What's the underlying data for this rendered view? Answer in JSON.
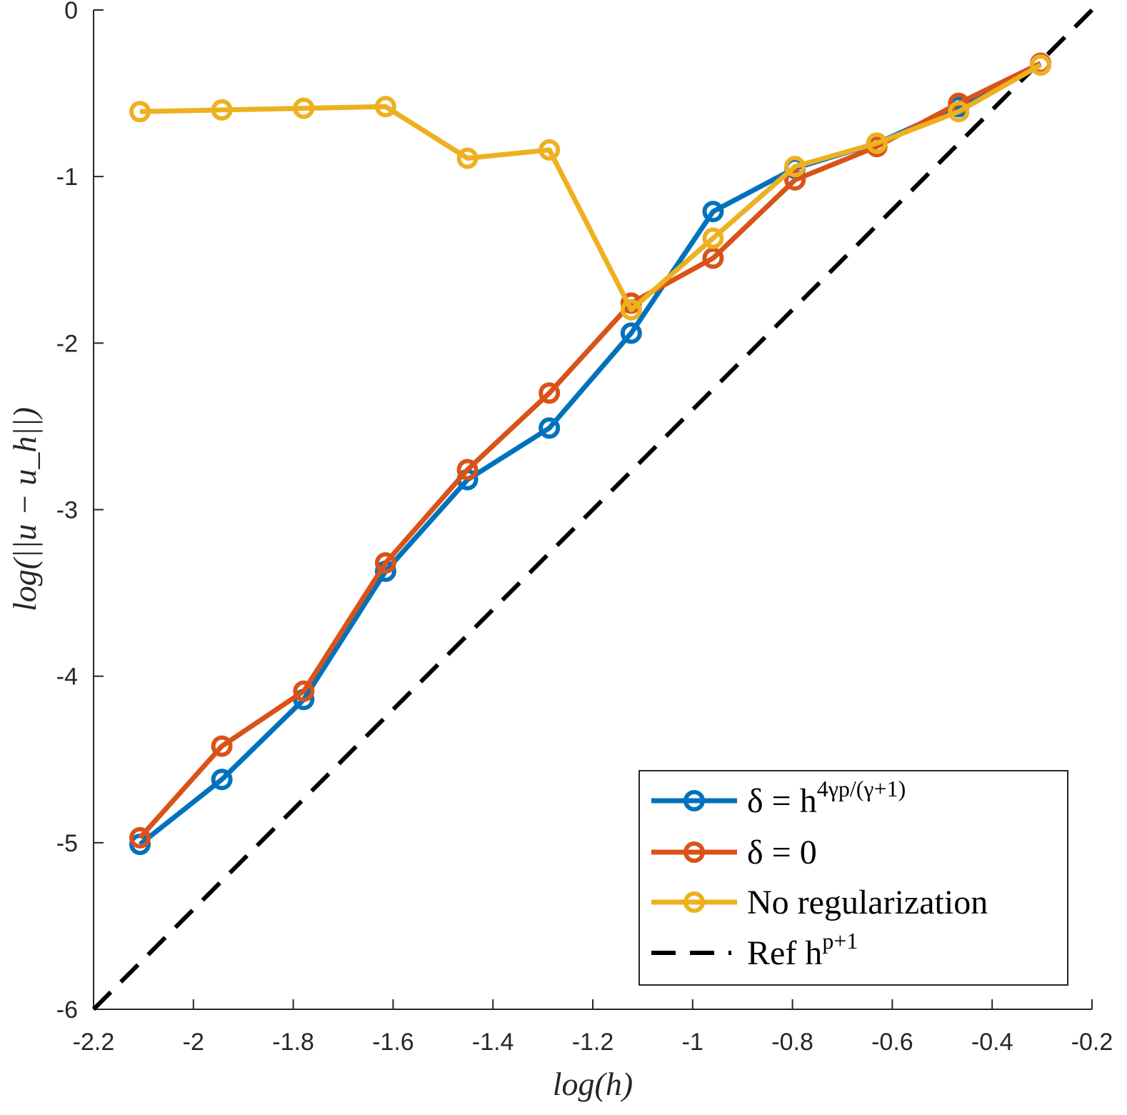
{
  "chart_data": {
    "type": "line",
    "title": "",
    "xlabel": "log(h)",
    "ylabel": "log(||u − u_h||)",
    "xlim": [
      -2.2,
      -0.2
    ],
    "ylim": [
      -6,
      0
    ],
    "xticks": [
      -2.2,
      -2,
      -1.8,
      -1.6,
      -1.4,
      -1.2,
      -1,
      -0.8,
      -0.6,
      -0.4,
      -0.2
    ],
    "xtick_labels": [
      "-2.2",
      "-2",
      "-1.8",
      "-1.6",
      "-1.4",
      "-1.2",
      "-1",
      "-0.8",
      "-0.6",
      "-0.4",
      "-0.2"
    ],
    "yticks": [
      0,
      -1,
      -2,
      -3,
      -4,
      -5,
      -6
    ],
    "ytick_labels": [
      "0",
      "-1",
      "-2",
      "-3",
      "-4",
      "-5",
      "-6"
    ],
    "grid": false,
    "legend_position": "bottom-right",
    "x": [
      -2.107,
      -1.943,
      -1.779,
      -1.615,
      -1.451,
      -1.287,
      -1.123,
      -0.959,
      -0.795,
      -0.631,
      -0.467,
      -0.303
    ],
    "series": [
      {
        "name": "δ = h^{4γp/(γ+1)}",
        "legend_main": "δ = h",
        "legend_sup": "4γp/(γ+1)",
        "color": "#0072bd",
        "style": "solid",
        "marker": "circle",
        "values": [
          -5.01,
          -4.62,
          -4.14,
          -3.37,
          -2.82,
          -2.51,
          -1.94,
          -1.21,
          -0.95,
          -0.8,
          -0.58,
          -0.33
        ]
      },
      {
        "name": "δ = 0",
        "legend_main": "δ = 0",
        "legend_sup": "",
        "color": "#d95319",
        "style": "solid",
        "marker": "circle",
        "values": [
          -4.97,
          -4.42,
          -4.09,
          -3.32,
          -2.76,
          -2.3,
          -1.76,
          -1.49,
          -1.02,
          -0.82,
          -0.56,
          -0.32
        ]
      },
      {
        "name": "No regularization",
        "legend_main": "No regularization",
        "legend_sup": "",
        "color": "#edb120",
        "style": "solid",
        "marker": "circle",
        "values": [
          -0.61,
          -0.6,
          -0.59,
          -0.58,
          -0.89,
          -0.84,
          -1.8,
          -1.37,
          -0.94,
          -0.8,
          -0.61,
          -0.33
        ]
      },
      {
        "name": "Ref h^{p+1}",
        "legend_main": "Ref h",
        "legend_sup": "p+1",
        "color": "#000000",
        "style": "dashed",
        "marker": "none",
        "x": [
          -2.2,
          -0.2
        ],
        "values": [
          -6,
          0
        ]
      }
    ]
  }
}
